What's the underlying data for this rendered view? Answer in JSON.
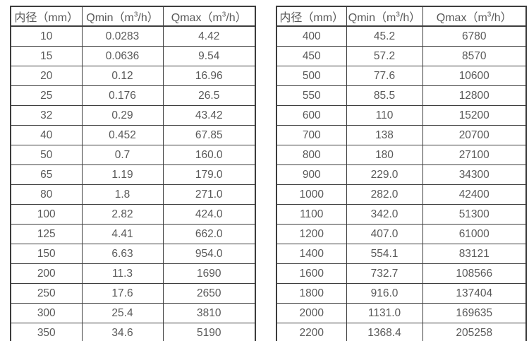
{
  "page": {
    "background_color": "#ffffff",
    "border_color": "#3d3d3d",
    "text_color": "#595959"
  },
  "chart_data": [
    {
      "type": "table",
      "title": "",
      "columns": [
        "内径（mm）",
        "Qmin（m³/h）",
        "Qmax（m³/h）"
      ],
      "rows": [
        [
          "10",
          "0.0283",
          "4.42"
        ],
        [
          "15",
          "0.0636",
          "9.54"
        ],
        [
          "20",
          "0.12",
          "16.96"
        ],
        [
          "25",
          "0.176",
          "26.5"
        ],
        [
          "32",
          "0.29",
          "43.42"
        ],
        [
          "40",
          "0.452",
          "67.85"
        ],
        [
          "50",
          "0.7",
          "160.0"
        ],
        [
          "65",
          "1.19",
          "179.0"
        ],
        [
          "80",
          "1.8",
          "271.0"
        ],
        [
          "100",
          "2.82",
          "424.0"
        ],
        [
          "125",
          "4.41",
          "662.0"
        ],
        [
          "150",
          "6.63",
          "954.0"
        ],
        [
          "200",
          "11.3",
          "1690"
        ],
        [
          "250",
          "17.6",
          "2650"
        ],
        [
          "300",
          "25.4",
          "3810"
        ],
        [
          "350",
          "34.6",
          "5190"
        ]
      ]
    },
    {
      "type": "table",
      "title": "",
      "columns": [
        "内径（mm）",
        "Qmin（m³/h）",
        "Qmax（m³/h）"
      ],
      "rows": [
        [
          "400",
          "45.2",
          "6780"
        ],
        [
          "450",
          "57.2",
          "8570"
        ],
        [
          "500",
          "77.6",
          "10600"
        ],
        [
          "550",
          "85.5",
          "12800"
        ],
        [
          "600",
          "110",
          "15200"
        ],
        [
          "700",
          "138",
          "20700"
        ],
        [
          "800",
          "180",
          "27100"
        ],
        [
          "900",
          "229.0",
          "34300"
        ],
        [
          "1000",
          "282.0",
          "42400"
        ],
        [
          "1100",
          "342.0",
          "51300"
        ],
        [
          "1200",
          "407.0",
          "61000"
        ],
        [
          "1400",
          "554.1",
          "83121"
        ],
        [
          "1600",
          "732.7",
          "108566"
        ],
        [
          "1800",
          "916.0",
          "137404"
        ],
        [
          "2000",
          "1131.0",
          "169635"
        ],
        [
          "2200",
          "1368.4",
          "205258"
        ]
      ]
    }
  ]
}
